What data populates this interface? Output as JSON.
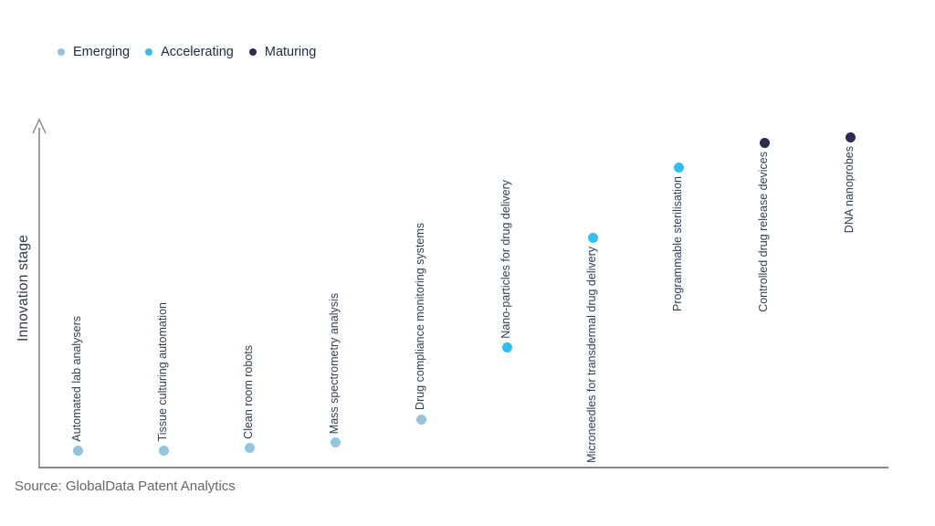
{
  "chart_data": {
    "type": "scatter",
    "title": "",
    "xlabel": "",
    "ylabel": "Innovation stage",
    "ylim": [
      0,
      1
    ],
    "grid": false,
    "legend_position": "top-left",
    "legend": [
      {
        "name": "Emerging",
        "color": "#92c5de"
      },
      {
        "name": "Accelerating",
        "color": "#33bef2"
      },
      {
        "name": "Maturing",
        "color": "#2e2a55"
      }
    ],
    "points": [
      {
        "name": "Automated lab analysers",
        "stage": "Emerging",
        "innovation_score": 0.05,
        "label_position": "above"
      },
      {
        "name": "Tissue culturing automation",
        "stage": "Emerging",
        "innovation_score": 0.05,
        "label_position": "above"
      },
      {
        "name": "Clean room robots",
        "stage": "Emerging",
        "innovation_score": 0.057,
        "label_position": "above"
      },
      {
        "name": "Mass spectrometry analysis",
        "stage": "Emerging",
        "innovation_score": 0.072,
        "label_position": "above"
      },
      {
        "name": "Drug compliance monitoring systems",
        "stage": "Emerging",
        "innovation_score": 0.14,
        "label_position": "above"
      },
      {
        "name": "Nano-particles for drug delivery",
        "stage": "Accelerating",
        "innovation_score": 0.348,
        "label_position": "above"
      },
      {
        "name": "Microneedles for transdermal drug delivery",
        "stage": "Accelerating",
        "innovation_score": 0.668,
        "label_position": "below"
      },
      {
        "name": "Programmable sterilisation",
        "stage": "Accelerating",
        "innovation_score": 0.872,
        "label_position": "below"
      },
      {
        "name": "Controlled drug release devices",
        "stage": "Maturing",
        "innovation_score": 0.944,
        "label_position": "below"
      },
      {
        "name": "DNA nanoprobes",
        "stage": "Maturing",
        "innovation_score": 0.96,
        "label_position": "below"
      }
    ],
    "source": "Source: GlobalData Patent Analytics"
  }
}
